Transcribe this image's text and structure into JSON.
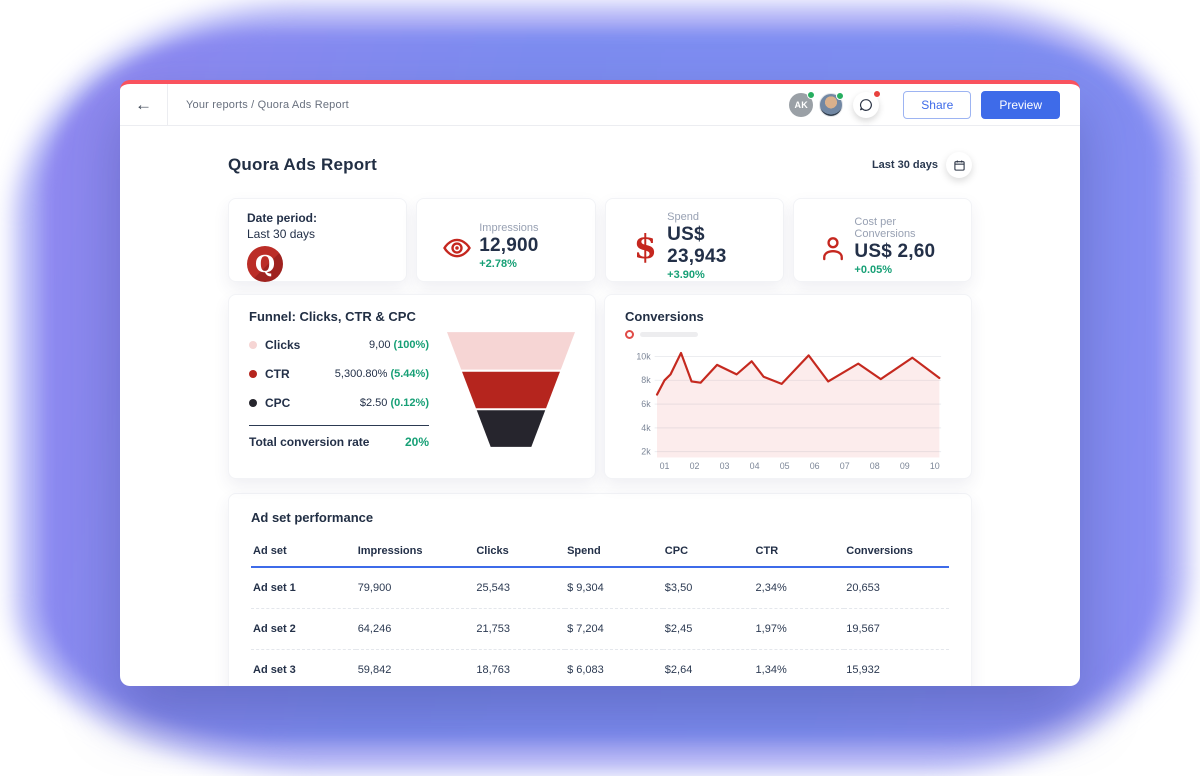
{
  "topbar": {
    "back_icon": "←",
    "breadcrumb": "Your reports / Quora Ads Report",
    "avatar_initials": "AK",
    "share_label": "Share",
    "preview_label": "Preview"
  },
  "header": {
    "title": "Quora Ads Report",
    "date_range": "Last 30 days"
  },
  "cards": {
    "date_period": {
      "label": "Date period:",
      "value": "Last 30 days",
      "logo_letter": "Q"
    },
    "metrics": [
      {
        "icon": "eye",
        "label": "Impressions",
        "value": "12,900",
        "delta": "+2.78%"
      },
      {
        "icon": "dollar",
        "icon_char": "$",
        "label": "Spend",
        "value": "US$ 23,943",
        "delta": "+3.90%"
      },
      {
        "icon": "person",
        "label": "Cost per Conversions",
        "value": "US$ 2,60",
        "delta": "+0.05%"
      }
    ]
  },
  "funnel": {
    "title": "Funnel: Clicks, CTR & CPC",
    "rows": [
      {
        "label": "Clicks",
        "value": "9,00",
        "pct": "(100%)",
        "color": "#f6d5d4"
      },
      {
        "label": "CTR",
        "value": "5,300.80%",
        "pct": "(5.44%)",
        "color": "#b5251e"
      },
      {
        "label": "CPC",
        "value": "$2.50",
        "pct": "(0.12%)",
        "color": "#26252d"
      }
    ],
    "total_label": "Total conversion rate",
    "total_value": "20%"
  },
  "conversions": {
    "title": "Conversions"
  },
  "chart_data": {
    "type": "area",
    "title": "Conversions",
    "x": [
      0.75,
      1.0,
      1.2,
      1.55,
      1.9,
      2.2,
      2.75,
      3.4,
      3.9,
      4.3,
      4.9,
      5.8,
      6.45,
      7.45,
      8.2,
      9.25,
      10.15
    ],
    "y_thousands": [
      6.8,
      8.0,
      8.5,
      10.3,
      7.9,
      7.8,
      9.3,
      8.5,
      9.6,
      8.3,
      7.7,
      10.1,
      7.9,
      9.4,
      8.1,
      9.9,
      8.2
    ],
    "x_tick_labels": [
      "01",
      "02",
      "03",
      "04",
      "05",
      "06",
      "07",
      "08",
      "09",
      "10"
    ],
    "y_tick_labels": [
      "2k",
      "4k",
      "6k",
      "8k",
      "10k"
    ],
    "y_tick_values": [
      2,
      4,
      6,
      8,
      10
    ],
    "ylim_thousands": [
      1.5,
      10.5
    ],
    "grid": true,
    "legend_position": "top-left",
    "line_color": "#c5291f",
    "fill_color": "#fcecec"
  },
  "table": {
    "title": "Ad set performance",
    "columns": [
      "Ad set",
      "Impressions",
      "Clicks",
      "Spend",
      "CPC",
      "CTR",
      "Conversions"
    ],
    "rows": [
      [
        "Ad set 1",
        "79,900",
        "25,543",
        "$ 9,304",
        "$3,50",
        "2,34%",
        "20,653"
      ],
      [
        "Ad set 2",
        "64,246",
        "21,753",
        "$ 7,204",
        "$2,45",
        "1,97%",
        "19,567"
      ],
      [
        "Ad set 3",
        "59,842",
        "18,763",
        "$ 6,083",
        "$2,64",
        "1,34%",
        "15,932"
      ]
    ]
  },
  "theme": {
    "accent_blue": "#3e6be9",
    "accent_red": "#c5271f",
    "quora_red": "#b92b27",
    "positive_green": "#17a076",
    "top_border_red": "#f9525e",
    "background_purple": "#7e8ef0",
    "text_dark": "#233048",
    "text_gray": "#98a1b3"
  }
}
